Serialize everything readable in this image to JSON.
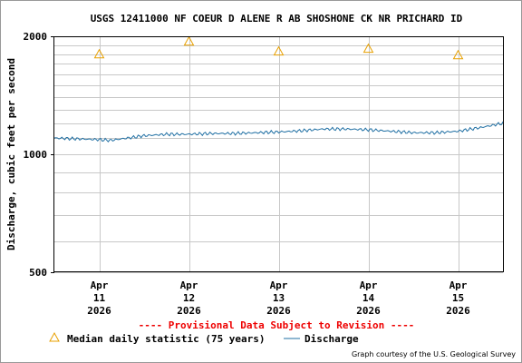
{
  "chart_data": {
    "type": "line",
    "title": "USGS 12411000 NF COEUR D ALENE R AB SHOSHONE CK NR PRICHARD ID",
    "ylabel": "Discharge, cubic feet per second",
    "xlabel": "",
    "y_scale": "log",
    "ylim": [
      500,
      2000
    ],
    "y_ticks": [
      "2000",
      "1000",
      "500"
    ],
    "x_range": [
      "2026-04-10T12:00",
      "2026-04-15T12:00"
    ],
    "x_ticks": [
      {
        "month": "Apr",
        "day": "11",
        "year": "2026"
      },
      {
        "month": "Apr",
        "day": "12",
        "year": "2026"
      },
      {
        "month": "Apr",
        "day": "13",
        "year": "2026"
      },
      {
        "month": "Apr",
        "day": "14",
        "year": "2026"
      },
      {
        "month": "Apr",
        "day": "15",
        "year": "2026"
      }
    ],
    "grid": true,
    "series": [
      {
        "name": "Discharge",
        "color": "#1f6fa3",
        "x": [
          "2026-04-10T12:00",
          "2026-04-10T18:00",
          "2026-04-11T00:00",
          "2026-04-11T03:00",
          "2026-04-11T06:00",
          "2026-04-11T12:00",
          "2026-04-11T18:00",
          "2026-04-12T00:00",
          "2026-04-12T06:00",
          "2026-04-12T12:00",
          "2026-04-12T18:00",
          "2026-04-13T00:00",
          "2026-04-13T06:00",
          "2026-04-13T12:00",
          "2026-04-13T18:00",
          "2026-04-14T00:00",
          "2026-04-14T06:00",
          "2026-04-14T12:00",
          "2026-04-14T18:00",
          "2026-04-15T00:00",
          "2026-04-15T06:00",
          "2026-04-15T12:00"
        ],
        "y": [
          1100,
          1095,
          1090,
          1085,
          1095,
          1115,
          1125,
          1125,
          1130,
          1130,
          1135,
          1140,
          1148,
          1160,
          1160,
          1155,
          1145,
          1135,
          1135,
          1145,
          1170,
          1200
        ]
      },
      {
        "name": "Median daily statistic (75 years)",
        "marker": "triangle",
        "color": "#e8a000",
        "x": [
          "2026-04-11T00:00",
          "2026-04-12T00:00",
          "2026-04-13T00:00",
          "2026-04-14T00:00",
          "2026-04-15T00:00"
        ],
        "y": [
          1800,
          1940,
          1830,
          1860,
          1790
        ]
      }
    ],
    "annotations": {
      "provisional": "---- Provisional Data Subject to Revision ----",
      "credit": "Graph courtesy of the U.S. Geological Survey"
    }
  }
}
